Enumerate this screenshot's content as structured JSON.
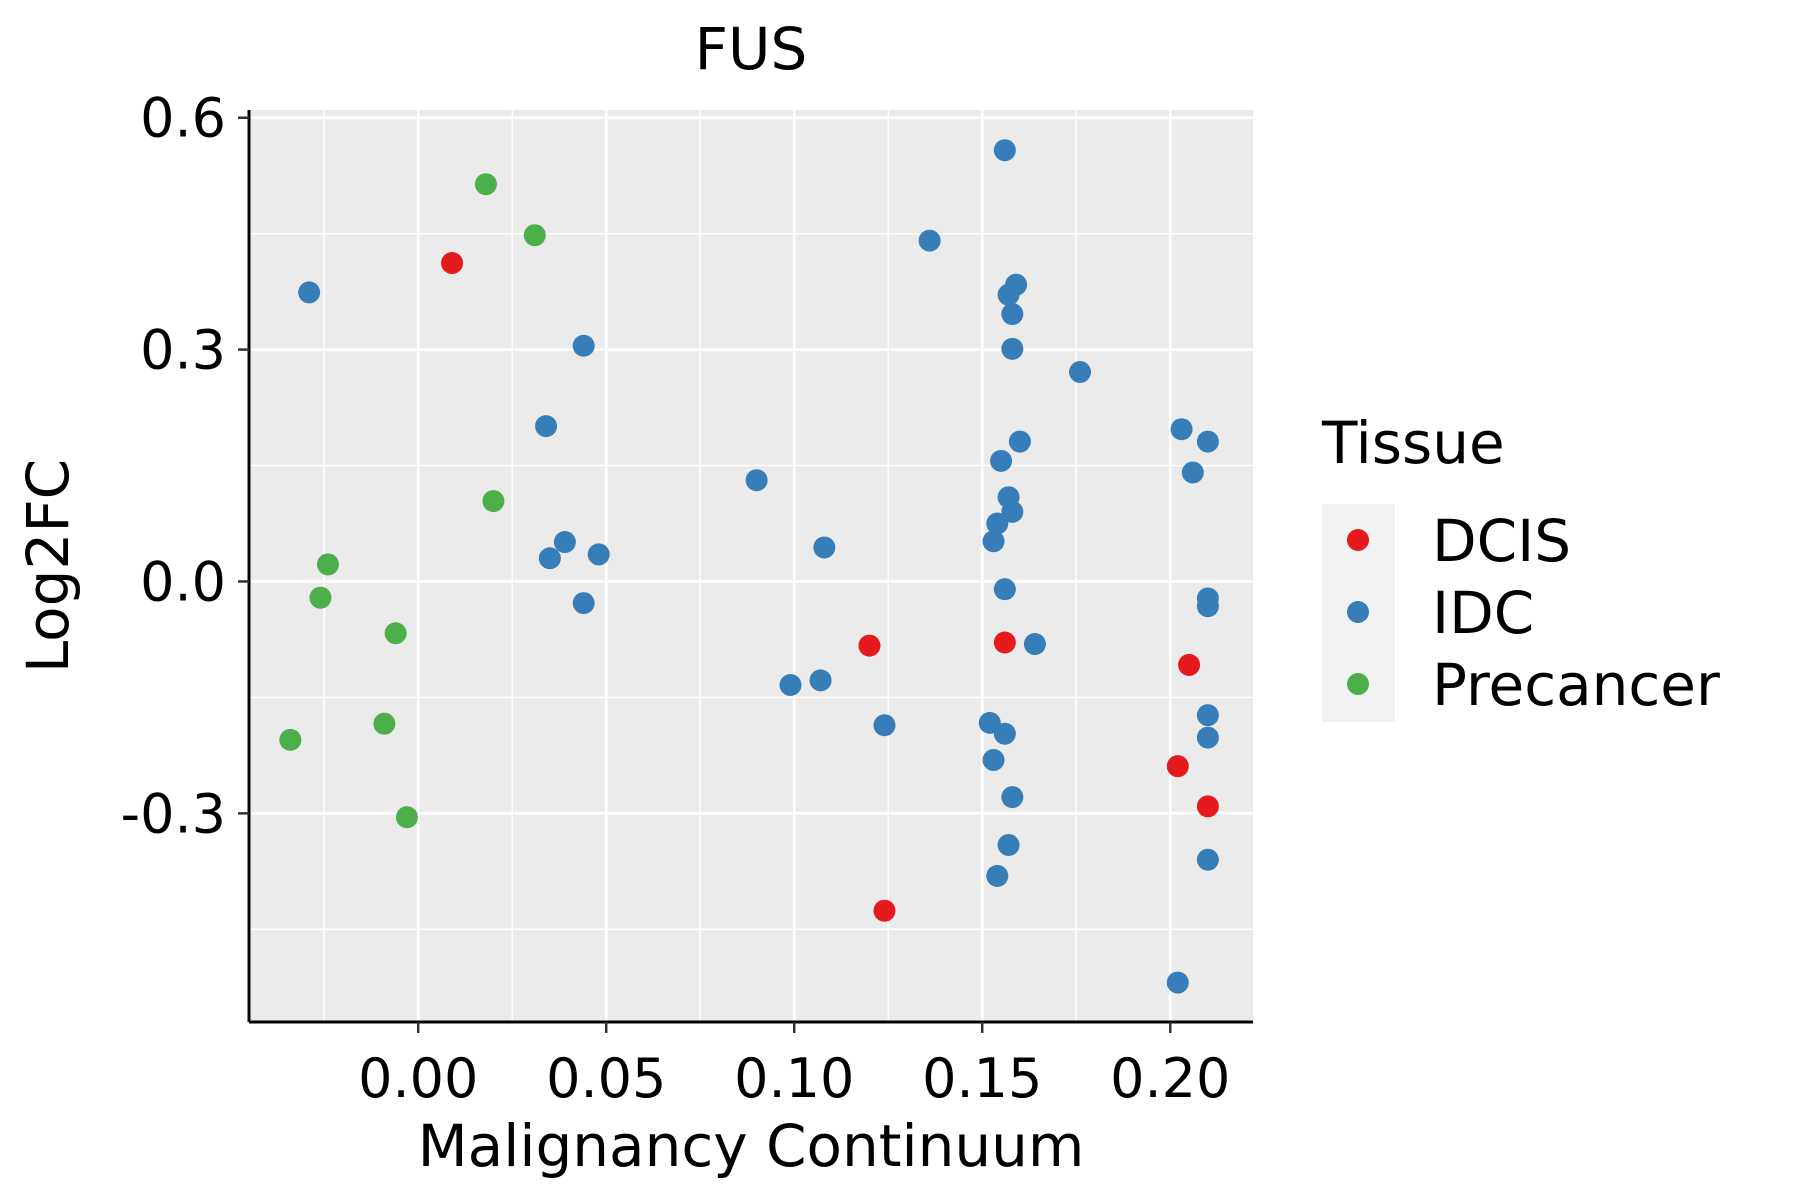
{
  "chart_data": {
    "type": "scatter",
    "title": "FUS",
    "xlabel": "Malignancy Continuum",
    "ylabel": "Log2FC",
    "xlim": [
      -0.045,
      0.222
    ],
    "ylim": [
      -0.57,
      0.61
    ],
    "xticks": [
      0.0,
      0.05,
      0.1,
      0.15,
      0.2
    ],
    "xtick_labels": [
      "0.00",
      "0.05",
      "0.10",
      "0.15",
      "0.20"
    ],
    "xminor": [
      -0.025,
      0.025,
      0.075,
      0.125,
      0.175
    ],
    "yticks": [
      0.6,
      0.3,
      0.0,
      -0.3
    ],
    "ytick_labels": [
      "0.6",
      "0.3",
      "0.0",
      "-0.3"
    ],
    "yminor": [
      0.45,
      0.15,
      -0.15,
      -0.45
    ],
    "grid": true,
    "legend": {
      "title": "Tissue",
      "position": "right",
      "entries": [
        "DCIS",
        "IDC",
        "Precancer"
      ]
    },
    "series": [
      {
        "name": "DCIS",
        "color": "#E41A1C",
        "points": [
          [
            0.009,
            0.412
          ],
          [
            0.12,
            -0.083
          ],
          [
            0.124,
            -0.426
          ],
          [
            0.156,
            -0.079
          ],
          [
            0.205,
            -0.108
          ],
          [
            0.202,
            -0.239
          ],
          [
            0.21,
            -0.291
          ]
        ]
      },
      {
        "name": "IDC",
        "color": "#377EB8",
        "points": [
          [
            -0.029,
            0.374
          ],
          [
            0.044,
            0.305
          ],
          [
            0.034,
            0.201
          ],
          [
            0.039,
            0.051
          ],
          [
            0.035,
            0.03
          ],
          [
            0.048,
            0.035
          ],
          [
            0.044,
            -0.028
          ],
          [
            0.09,
            0.131
          ],
          [
            0.108,
            0.044
          ],
          [
            0.099,
            -0.134
          ],
          [
            0.107,
            -0.128
          ],
          [
            0.124,
            -0.186
          ],
          [
            0.136,
            0.441
          ],
          [
            0.156,
            0.558
          ],
          [
            0.159,
            0.384
          ],
          [
            0.157,
            0.371
          ],
          [
            0.158,
            0.346
          ],
          [
            0.158,
            0.301
          ],
          [
            0.176,
            0.271
          ],
          [
            0.16,
            0.181
          ],
          [
            0.155,
            0.156
          ],
          [
            0.157,
            0.109
          ],
          [
            0.158,
            0.09
          ],
          [
            0.154,
            0.075
          ],
          [
            0.153,
            0.052
          ],
          [
            0.156,
            -0.01
          ],
          [
            0.164,
            -0.081
          ],
          [
            0.152,
            -0.183
          ],
          [
            0.156,
            -0.197
          ],
          [
            0.153,
            -0.231
          ],
          [
            0.158,
            -0.279
          ],
          [
            0.157,
            -0.341
          ],
          [
            0.154,
            -0.381
          ],
          [
            0.203,
            0.197
          ],
          [
            0.21,
            0.181
          ],
          [
            0.206,
            0.141
          ],
          [
            0.21,
            -0.022
          ],
          [
            0.21,
            -0.032
          ],
          [
            0.21,
            -0.173
          ],
          [
            0.21,
            -0.202
          ],
          [
            0.21,
            -0.36
          ],
          [
            0.202,
            -0.519
          ]
        ]
      },
      {
        "name": "Precancer",
        "color": "#4DAF4A",
        "points": [
          [
            0.018,
            0.514
          ],
          [
            0.031,
            0.448
          ],
          [
            0.02,
            0.104
          ],
          [
            -0.024,
            0.022
          ],
          [
            -0.026,
            -0.021
          ],
          [
            -0.006,
            -0.067
          ],
          [
            -0.009,
            -0.184
          ],
          [
            -0.034,
            -0.205
          ],
          [
            -0.003,
            -0.305
          ]
        ]
      }
    ]
  }
}
